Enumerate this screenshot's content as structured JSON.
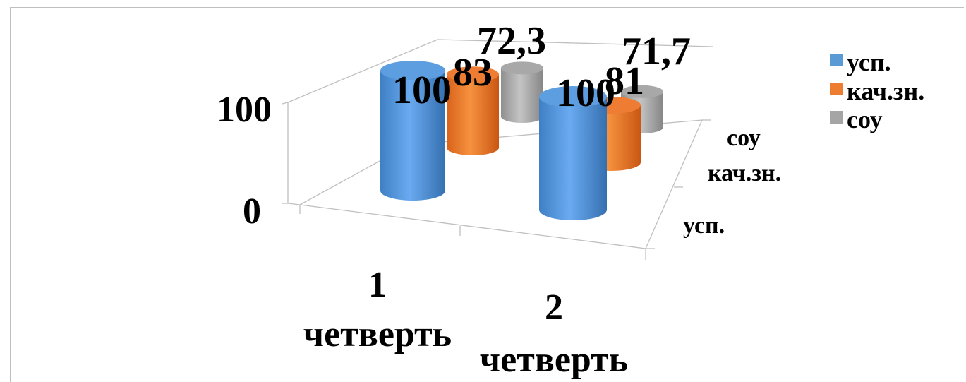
{
  "chart_data": {
    "type": "bar",
    "style": "3d-cylinder",
    "categories": [
      "1\nчетверть",
      "2\nчетверть"
    ],
    "series": [
      {
        "name": "усп.",
        "color": "#5b9bd5",
        "values": [
          100,
          100
        ]
      },
      {
        "name": "кач.зн.",
        "color": "#ed7d31",
        "values": [
          83,
          81
        ]
      },
      {
        "name": "соу",
        "color": "#a5a5a5",
        "values": [
          72.3,
          71.7
        ]
      }
    ],
    "data_labels": [
      [
        "100",
        "100"
      ],
      [
        "83",
        "81"
      ],
      [
        "72,3",
        "71,7"
      ]
    ],
    "y_ticks": [
      "0",
      "100"
    ],
    "depth_axis_labels": [
      "усп.",
      "кач.зн.",
      "соу"
    ],
    "ylim": [
      0,
      100
    ],
    "legend": "right"
  }
}
